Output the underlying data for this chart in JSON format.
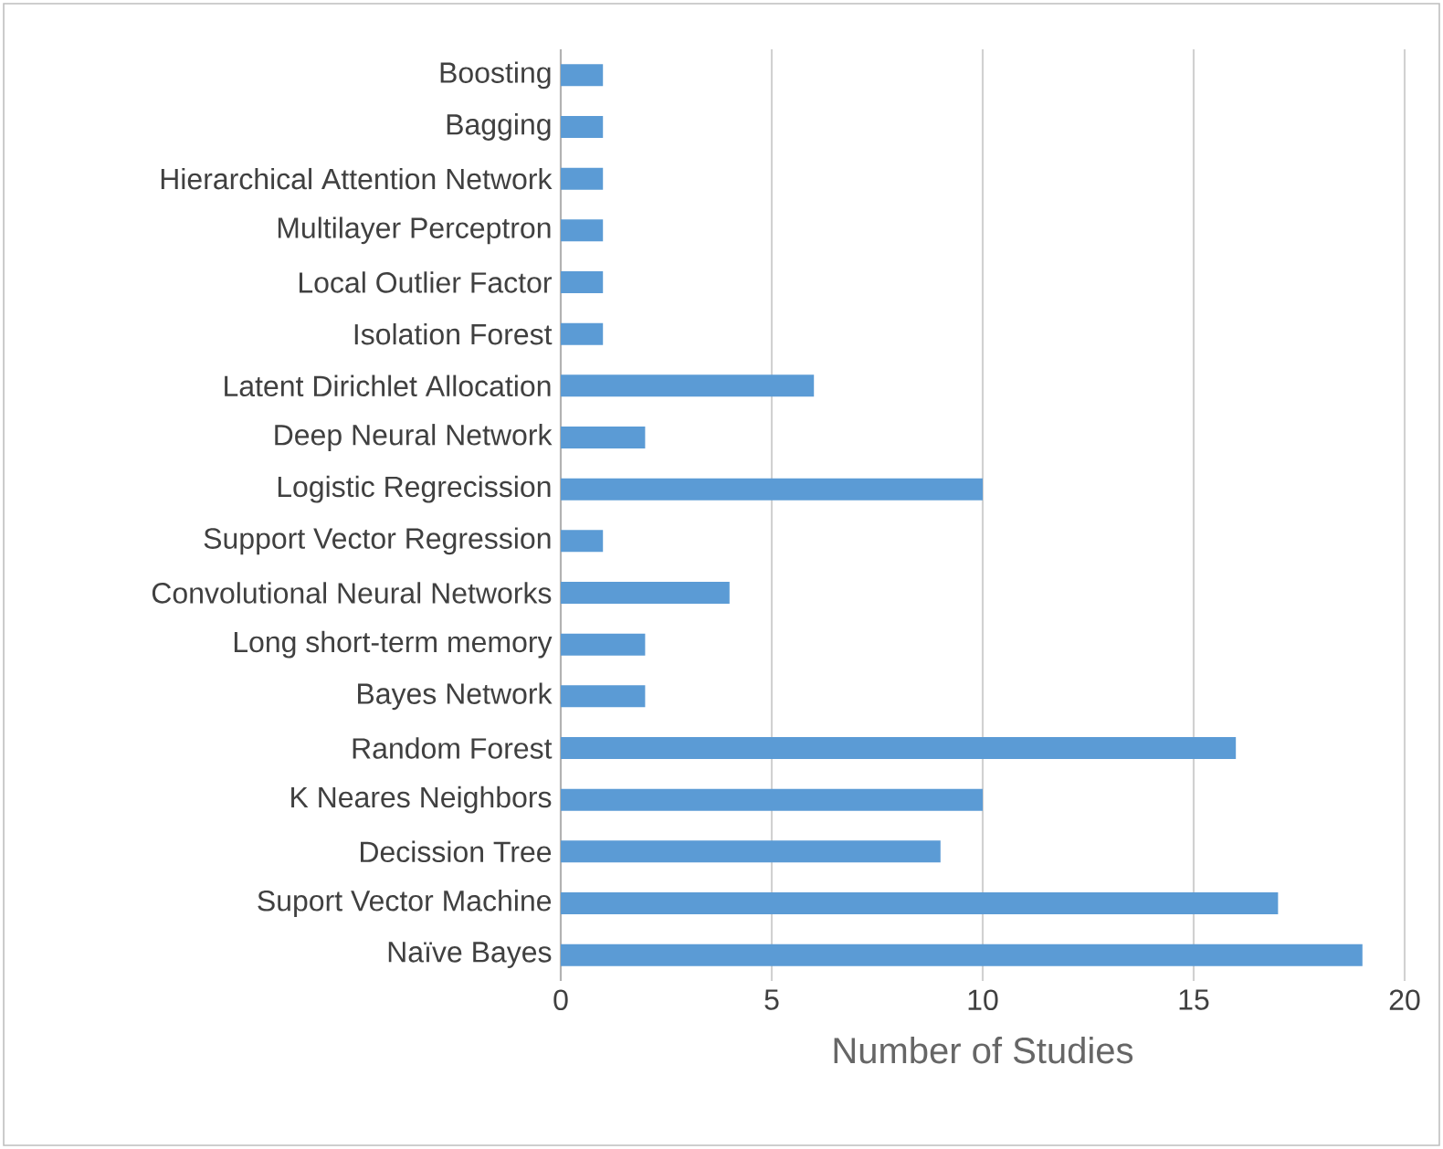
{
  "chart_data": {
    "type": "bar",
    "orientation": "horizontal",
    "xlabel": "Number of Studies",
    "categories": [
      "Boosting",
      "Bagging",
      "Hierarchical Attention Network",
      "Multilayer Perceptron",
      "Local Outlier Factor",
      "Isolation Forest",
      "Latent Dirichlet Allocation",
      "Deep Neural Network",
      "Logistic Regrecission",
      "Support Vector Regression",
      "Convolutional Neural Networks",
      "Long short-term memory",
      "Bayes Network",
      "Random Forest",
      "K Neares Neighbors",
      "Decission Tree",
      "Suport Vector Machine",
      "Naïve Bayes"
    ],
    "values": [
      1,
      1,
      1,
      1,
      1,
      1,
      6,
      2,
      10,
      1,
      4,
      2,
      2,
      16,
      10,
      9,
      17,
      19
    ],
    "color": "#5b9bd5",
    "xlim": [
      0,
      20
    ],
    "xticks": [
      0,
      5,
      10,
      15,
      20
    ],
    "grid": "x"
  }
}
